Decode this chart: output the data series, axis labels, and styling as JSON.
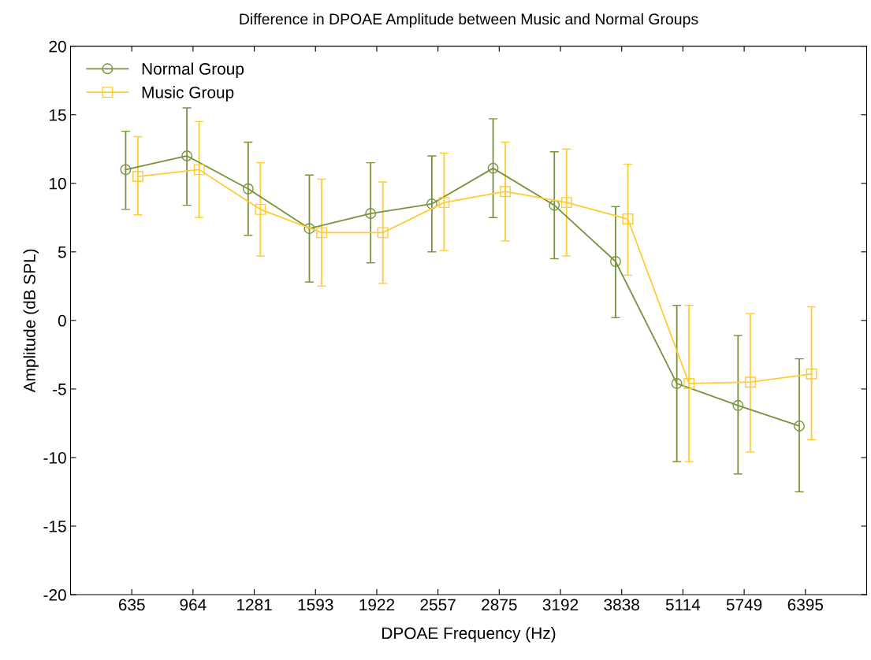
{
  "chart_data": {
    "type": "line",
    "title": "Difference in DPOAE Amplitude between Music and Normal Groups",
    "xlabel": "DPOAE Frequency (Hz)",
    "ylabel": "Amplitude (dB SPL)",
    "categories": [
      "635",
      "964",
      "1281",
      "1593",
      "1922",
      "2557",
      "2875",
      "3192",
      "3838",
      "5114",
      "5749",
      "6395"
    ],
    "series": [
      {
        "name": "Normal Group",
        "color": "#77933c",
        "marker": "circle",
        "values": [
          11.0,
          12.0,
          9.6,
          6.7,
          7.8,
          8.5,
          11.1,
          8.4,
          4.3,
          -4.6,
          -6.2,
          -7.7
        ],
        "errors": [
          [
            8.1,
            13.8
          ],
          [
            8.4,
            15.5
          ],
          [
            6.2,
            13.0
          ],
          [
            2.8,
            10.6
          ],
          [
            4.2,
            11.5
          ],
          [
            5.0,
            12.0
          ],
          [
            7.5,
            14.7
          ],
          [
            4.5,
            12.3
          ],
          [
            0.2,
            8.3
          ],
          [
            -10.3,
            1.1
          ],
          [
            -11.2,
            -1.1
          ],
          [
            -12.5,
            -2.8
          ]
        ]
      },
      {
        "name": "Music Group",
        "color": "#ffcc33",
        "marker": "square",
        "values": [
          10.5,
          11.0,
          8.1,
          6.4,
          6.4,
          8.6,
          9.4,
          8.6,
          7.4,
          -4.6,
          -4.5,
          -3.9
        ],
        "errors": [
          [
            7.7,
            13.4
          ],
          [
            7.5,
            14.5
          ],
          [
            4.7,
            11.5
          ],
          [
            2.5,
            10.3
          ],
          [
            2.7,
            10.1
          ],
          [
            5.1,
            12.2
          ],
          [
            5.8,
            13.0
          ],
          [
            4.7,
            12.5
          ],
          [
            3.3,
            11.4
          ],
          [
            -10.3,
            1.1
          ],
          [
            -9.6,
            0.5
          ],
          [
            -8.7,
            1.0
          ]
        ]
      }
    ],
    "ylim": [
      -20,
      20
    ],
    "yticks": [
      -20,
      -15,
      -10,
      -5,
      0,
      5,
      10,
      15,
      20
    ],
    "grid": false,
    "legend": "top left"
  }
}
